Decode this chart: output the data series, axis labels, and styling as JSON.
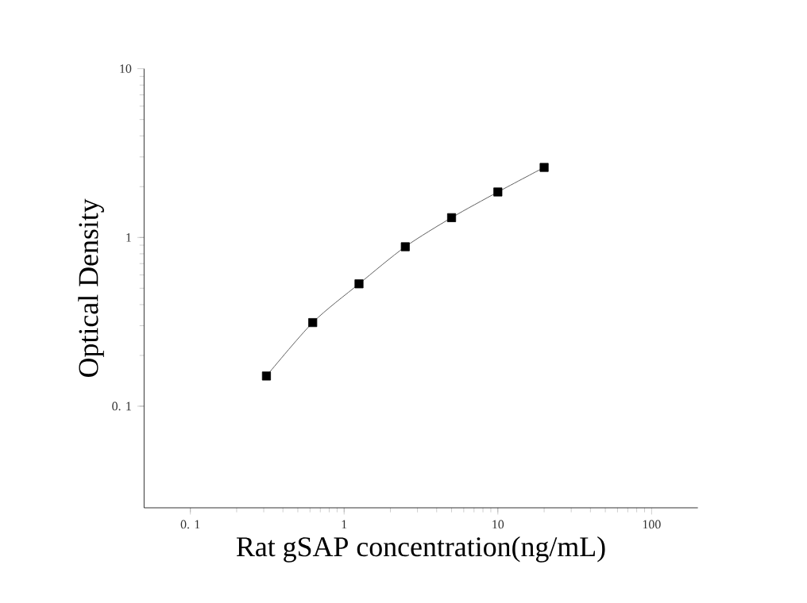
{
  "chart_data": {
    "type": "scatter",
    "xlabel": "Rat gSAP concentration(ng/mL)",
    "ylabel": "Optical Density",
    "log": "xy",
    "grid": false,
    "xlim": [
      0.05,
      200
    ],
    "ylim": [
      0.025,
      10
    ],
    "xticks": [
      {
        "value": 0.1,
        "label": "0. 1"
      },
      1,
      10,
      100
    ],
    "yticks": [
      {
        "value": 0.1,
        "label": "0. 1"
      },
      1,
      10
    ],
    "series": [
      {
        "type": "line",
        "color": "#606060",
        "marker": "none",
        "line_style": "solid",
        "x": [
          0.3125,
          0.625,
          1.25,
          2.5,
          5,
          10,
          20
        ],
        "values": [
          0.151,
          0.313,
          0.531,
          0.881,
          1.31,
          1.86,
          2.6
        ]
      },
      {
        "color": "#000000",
        "marker": "square",
        "x": [
          0.3125,
          0.625,
          1.25,
          2.5,
          5,
          10,
          20
        ],
        "values": [
          0.151,
          0.313,
          0.531,
          0.881,
          1.31,
          1.86,
          2.6
        ]
      }
    ]
  }
}
